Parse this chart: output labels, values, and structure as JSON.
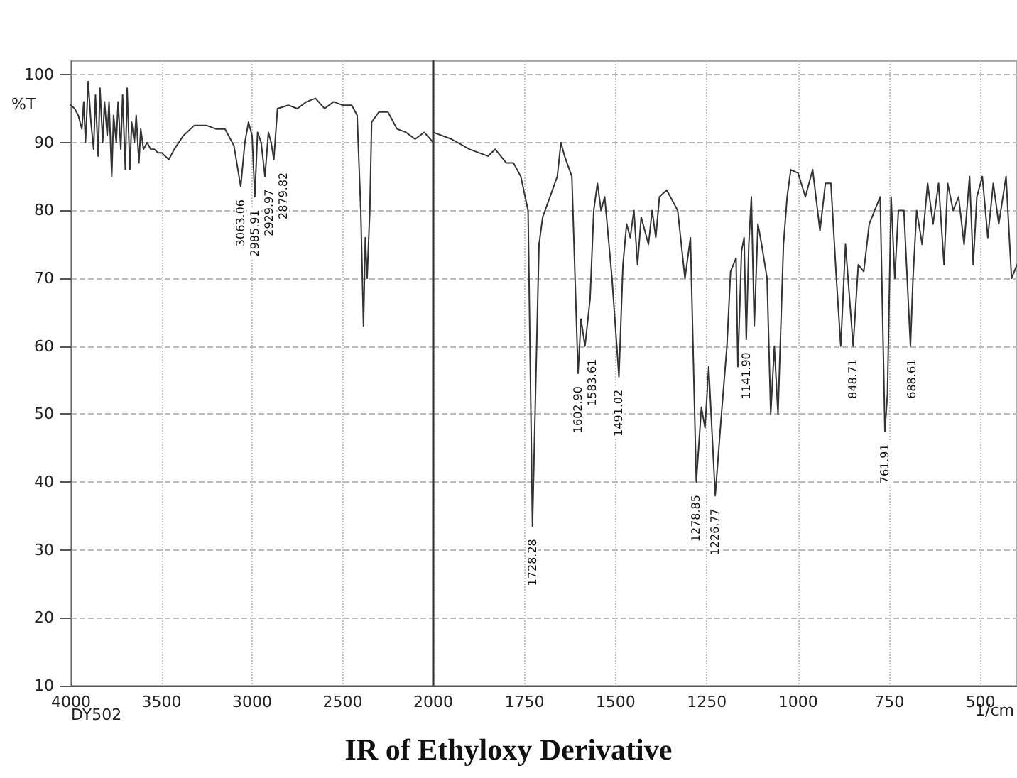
{
  "chart_data": [
    {
      "type": "line",
      "title": "IR of Ethyloxy Derivative",
      "ylabel": "%T",
      "x": [
        4000,
        3980,
        3960,
        3940,
        3930,
        3920,
        3905,
        3890,
        3875,
        3865,
        3850,
        3840,
        3825,
        3815,
        3800,
        3790,
        3775,
        3765,
        3750,
        3740,
        3725,
        3715,
        3700,
        3690,
        3675,
        3665,
        3650,
        3640,
        3625,
        3615,
        3600,
        3580,
        3560,
        3540,
        3520,
        3500,
        3460,
        3430,
        3380,
        3320,
        3250,
        3200,
        3150,
        3100,
        3063,
        3040,
        3020,
        3000,
        2985,
        2970,
        2950,
        2929,
        2910,
        2895,
        2880,
        2860,
        2800,
        2750,
        2700,
        2650,
        2600,
        2550,
        2500,
        2450,
        2420,
        2400,
        2385,
        2375,
        2365,
        2350,
        2340,
        2300,
        2250,
        2200,
        2150,
        2100,
        2050,
        2000
      ],
      "series": [
        {
          "color": "#333333",
          "values": [
            95.5,
            95,
            94,
            92,
            96,
            90,
            99,
            93,
            89,
            97,
            88,
            98,
            90,
            96,
            91,
            96,
            85,
            94,
            90,
            96,
            89,
            97,
            86,
            98,
            86,
            93,
            90,
            94,
            87,
            92,
            89,
            90,
            89,
            89,
            88.5,
            88.5,
            87.5,
            89,
            91,
            92.5,
            92.5,
            92,
            92,
            89.5,
            83.5,
            90,
            93,
            91,
            82,
            91.5,
            90,
            85,
            91.5,
            90,
            87.5,
            95,
            95.5,
            95,
            96,
            96.5,
            95,
            96,
            95.5,
            95.5,
            94,
            80,
            63,
            76,
            70,
            80,
            93,
            94.5,
            94.5,
            92,
            91.5,
            90.5,
            91.5,
            90
          ]
        }
      ],
      "xlim": [
        4000,
        2000
      ],
      "xticks": [
        4000,
        3500,
        3000,
        2500
      ],
      "ylim": [
        10,
        102
      ],
      "yticks": [
        10,
        20,
        30,
        40,
        50,
        60,
        70,
        80,
        90,
        100
      ],
      "grid": true,
      "annotations": [
        "DY502",
        {
          "text": "3063.06",
          "x": 3063.06,
          "y": 83.5
        },
        {
          "text": "2985.91",
          "x": 2985.91,
          "y": 82
        },
        {
          "text": "2929.97",
          "x": 2929.97,
          "y": 85
        },
        {
          "text": "2879.82",
          "x": 2879.82,
          "y": 87.5
        }
      ]
    },
    {
      "type": "line",
      "xlabel": "1/cm",
      "x": [
        2000,
        1950,
        1900,
        1850,
        1830,
        1800,
        1780,
        1760,
        1740,
        1728,
        1710,
        1700,
        1680,
        1660,
        1650,
        1640,
        1620,
        1603,
        1595,
        1584,
        1570,
        1560,
        1550,
        1540,
        1530,
        1510,
        1491,
        1480,
        1470,
        1460,
        1450,
        1440,
        1430,
        1410,
        1400,
        1390,
        1380,
        1360,
        1330,
        1310,
        1295,
        1279,
        1265,
        1255,
        1245,
        1227,
        1210,
        1195,
        1185,
        1170,
        1165,
        1155,
        1148,
        1142,
        1135,
        1128,
        1120,
        1110,
        1100,
        1085,
        1075,
        1065,
        1055,
        1040,
        1030,
        1020,
        1000,
        980,
        960,
        940,
        925,
        910,
        895,
        883,
        870,
        849,
        835,
        820,
        805,
        790,
        775,
        762,
        755,
        745,
        735,
        725,
        710,
        692,
        685,
        675,
        660,
        645,
        630,
        615,
        600,
        590,
        575,
        560,
        545,
        530,
        520,
        510,
        495,
        480,
        465,
        450,
        430,
        415,
        400
      ],
      "series": [
        {
          "color": "#333333",
          "values": [
            91.5,
            90.5,
            89,
            88,
            89,
            87,
            87,
            85,
            80,
            33.5,
            75,
            79,
            82,
            85,
            90,
            88,
            85,
            56,
            64,
            60,
            67,
            80,
            84,
            80,
            82,
            70,
            55.5,
            72,
            78,
            76,
            80,
            72,
            79,
            75,
            80,
            76,
            82,
            83,
            80,
            70,
            76,
            40,
            51,
            48,
            57,
            38,
            50,
            60,
            71,
            73,
            57,
            74,
            76,
            61,
            75,
            82,
            63,
            78,
            75,
            70,
            50,
            60,
            50,
            75,
            82,
            86,
            85.5,
            82,
            86,
            77,
            84,
            84,
            70,
            60,
            75,
            60,
            72,
            71,
            78,
            80,
            82,
            47.5,
            53,
            82,
            70,
            80,
            80,
            60,
            70,
            80,
            75,
            84,
            78,
            84,
            72,
            84,
            80,
            82,
            75,
            85,
            72,
            82,
            85,
            76,
            84,
            78,
            85,
            70,
            72
          ]
        }
      ],
      "xlim": [
        2000,
        400
      ],
      "xticks": [
        2000,
        1750,
        1500,
        1250,
        1000,
        750,
        500
      ],
      "ylim": [
        10,
        102
      ],
      "yticks": [
        10,
        20,
        30,
        40,
        50,
        60,
        70,
        80,
        90,
        100
      ],
      "grid": true,
      "tick_labels": "x",
      "annotations": [
        {
          "text": "1728.28",
          "x": 1728.28,
          "y": 33.5
        },
        {
          "text": "1602.90",
          "x": 1602.9,
          "y": 56
        },
        {
          "text": "1583.61",
          "x": 1583.61,
          "y": 60
        },
        {
          "text": "1491.02",
          "x": 1491.02,
          "y": 55.5
        },
        {
          "text": "1278.85",
          "x": 1278.85,
          "y": 40
        },
        {
          "text": "1226.77",
          "x": 1226.77,
          "y": 38
        },
        {
          "text": "1141.90",
          "x": 1141.9,
          "y": 61
        },
        {
          "text": "848.71",
          "x": 848.71,
          "y": 60
        },
        {
          "text": "761.91",
          "x": 761.91,
          "y": 47.5
        },
        {
          "text": "688.61",
          "x": 688.61,
          "y": 60
        }
      ]
    }
  ]
}
